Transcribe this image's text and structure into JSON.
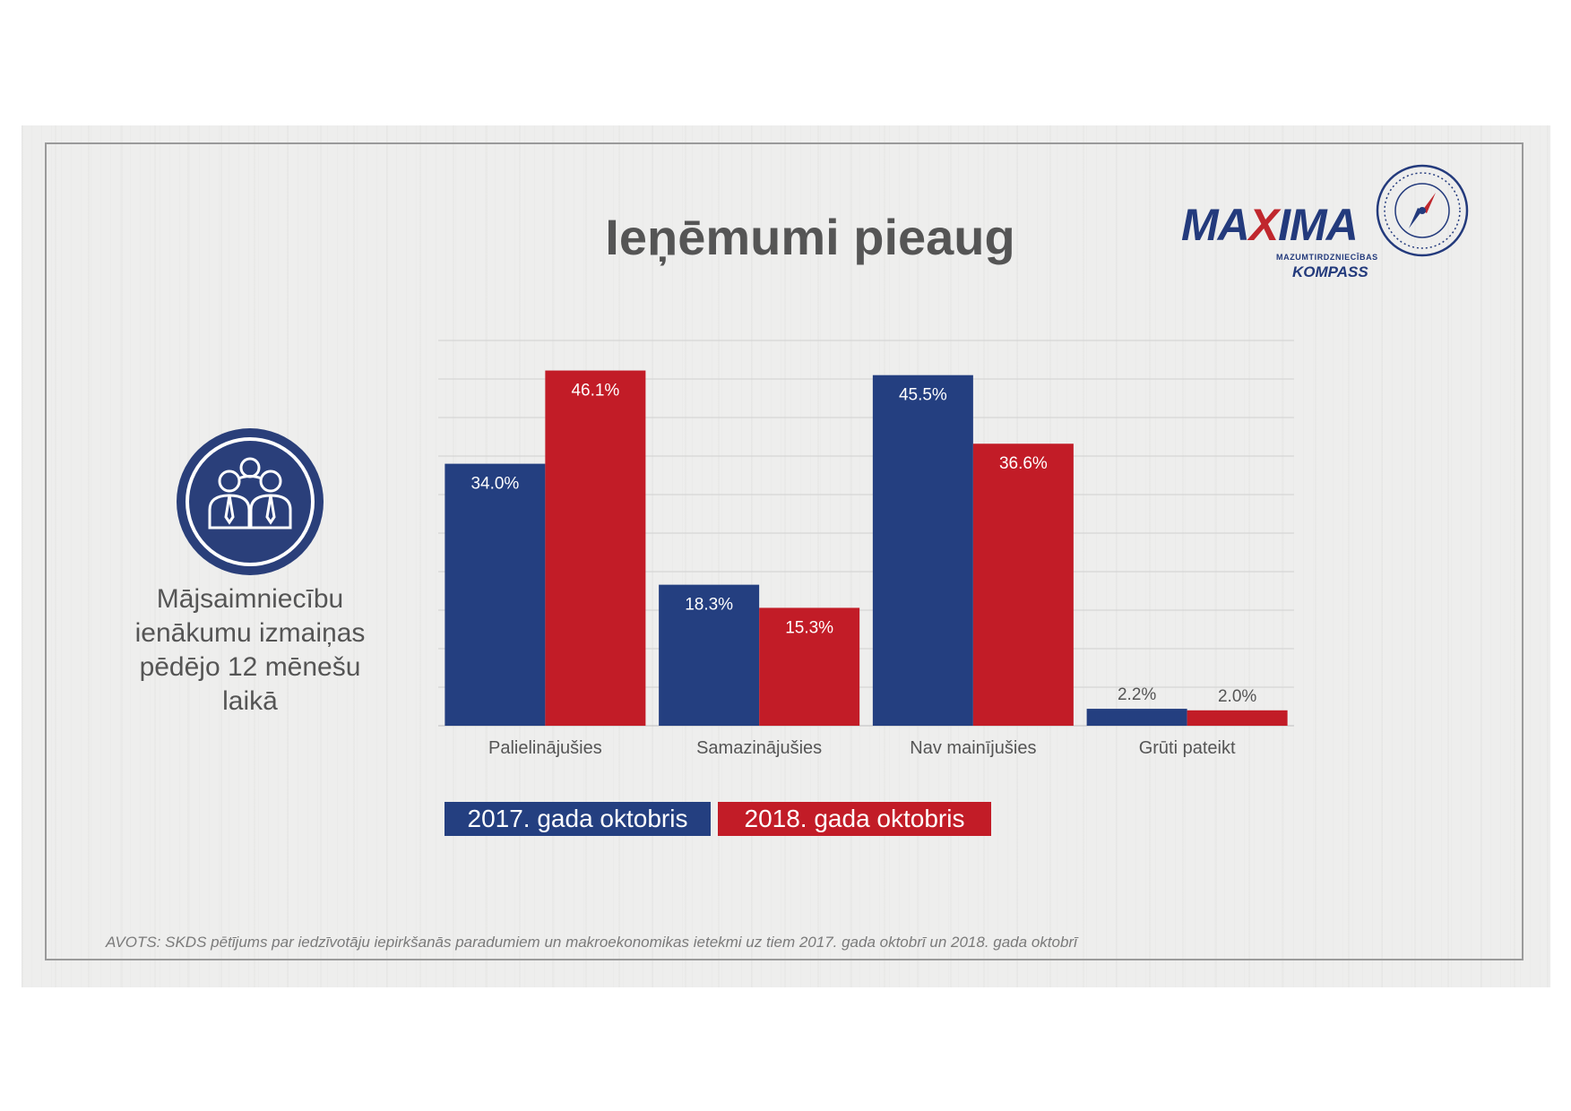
{
  "title": "Ieņēmumi pieaug",
  "logo": {
    "brand": "MAXIMA",
    "subtitle": "MAZUMTIRDZNIECĪBAS",
    "name": "KOMPASS"
  },
  "side_text": [
    "Mājsaimniecību",
    "ienākumu izmaiņas",
    "pēdējo 12 mēnešu",
    "laikā"
  ],
  "source": "AVOTS:  SKDS pētījums par iedzīvotāju iepirkšanās paradumiem un makroekonomikas ietekmi uz tiem 2017. gada oktobrī  un 2018. gada oktobrī",
  "icons": {
    "people": "people-group-icon",
    "compass": "compass-icon"
  },
  "colors": {
    "series_2017": "#243f80",
    "series_2018": "#c21c27",
    "text": "#555555",
    "grid": "#d0d0d0"
  },
  "chart_data": {
    "type": "bar",
    "categories": [
      "Palielinājušies",
      "Samazinājušies",
      "Nav mainījušies",
      "Grūti pateikt"
    ],
    "series": [
      {
        "name": "2017. gada oktobris",
        "values": [
          34.0,
          18.3,
          45.5,
          2.2
        ],
        "labels": [
          "34.0%",
          "18.3%",
          "45.5%",
          "2.2%"
        ]
      },
      {
        "name": "2018. gada oktobris",
        "values": [
          46.1,
          15.3,
          36.6,
          2.0
        ],
        "labels": [
          "46.1%",
          "15.3%",
          "36.6%",
          "2.0%"
        ]
      }
    ],
    "ylim": [
      0,
      50
    ],
    "grid": true,
    "legend": "bottom"
  }
}
